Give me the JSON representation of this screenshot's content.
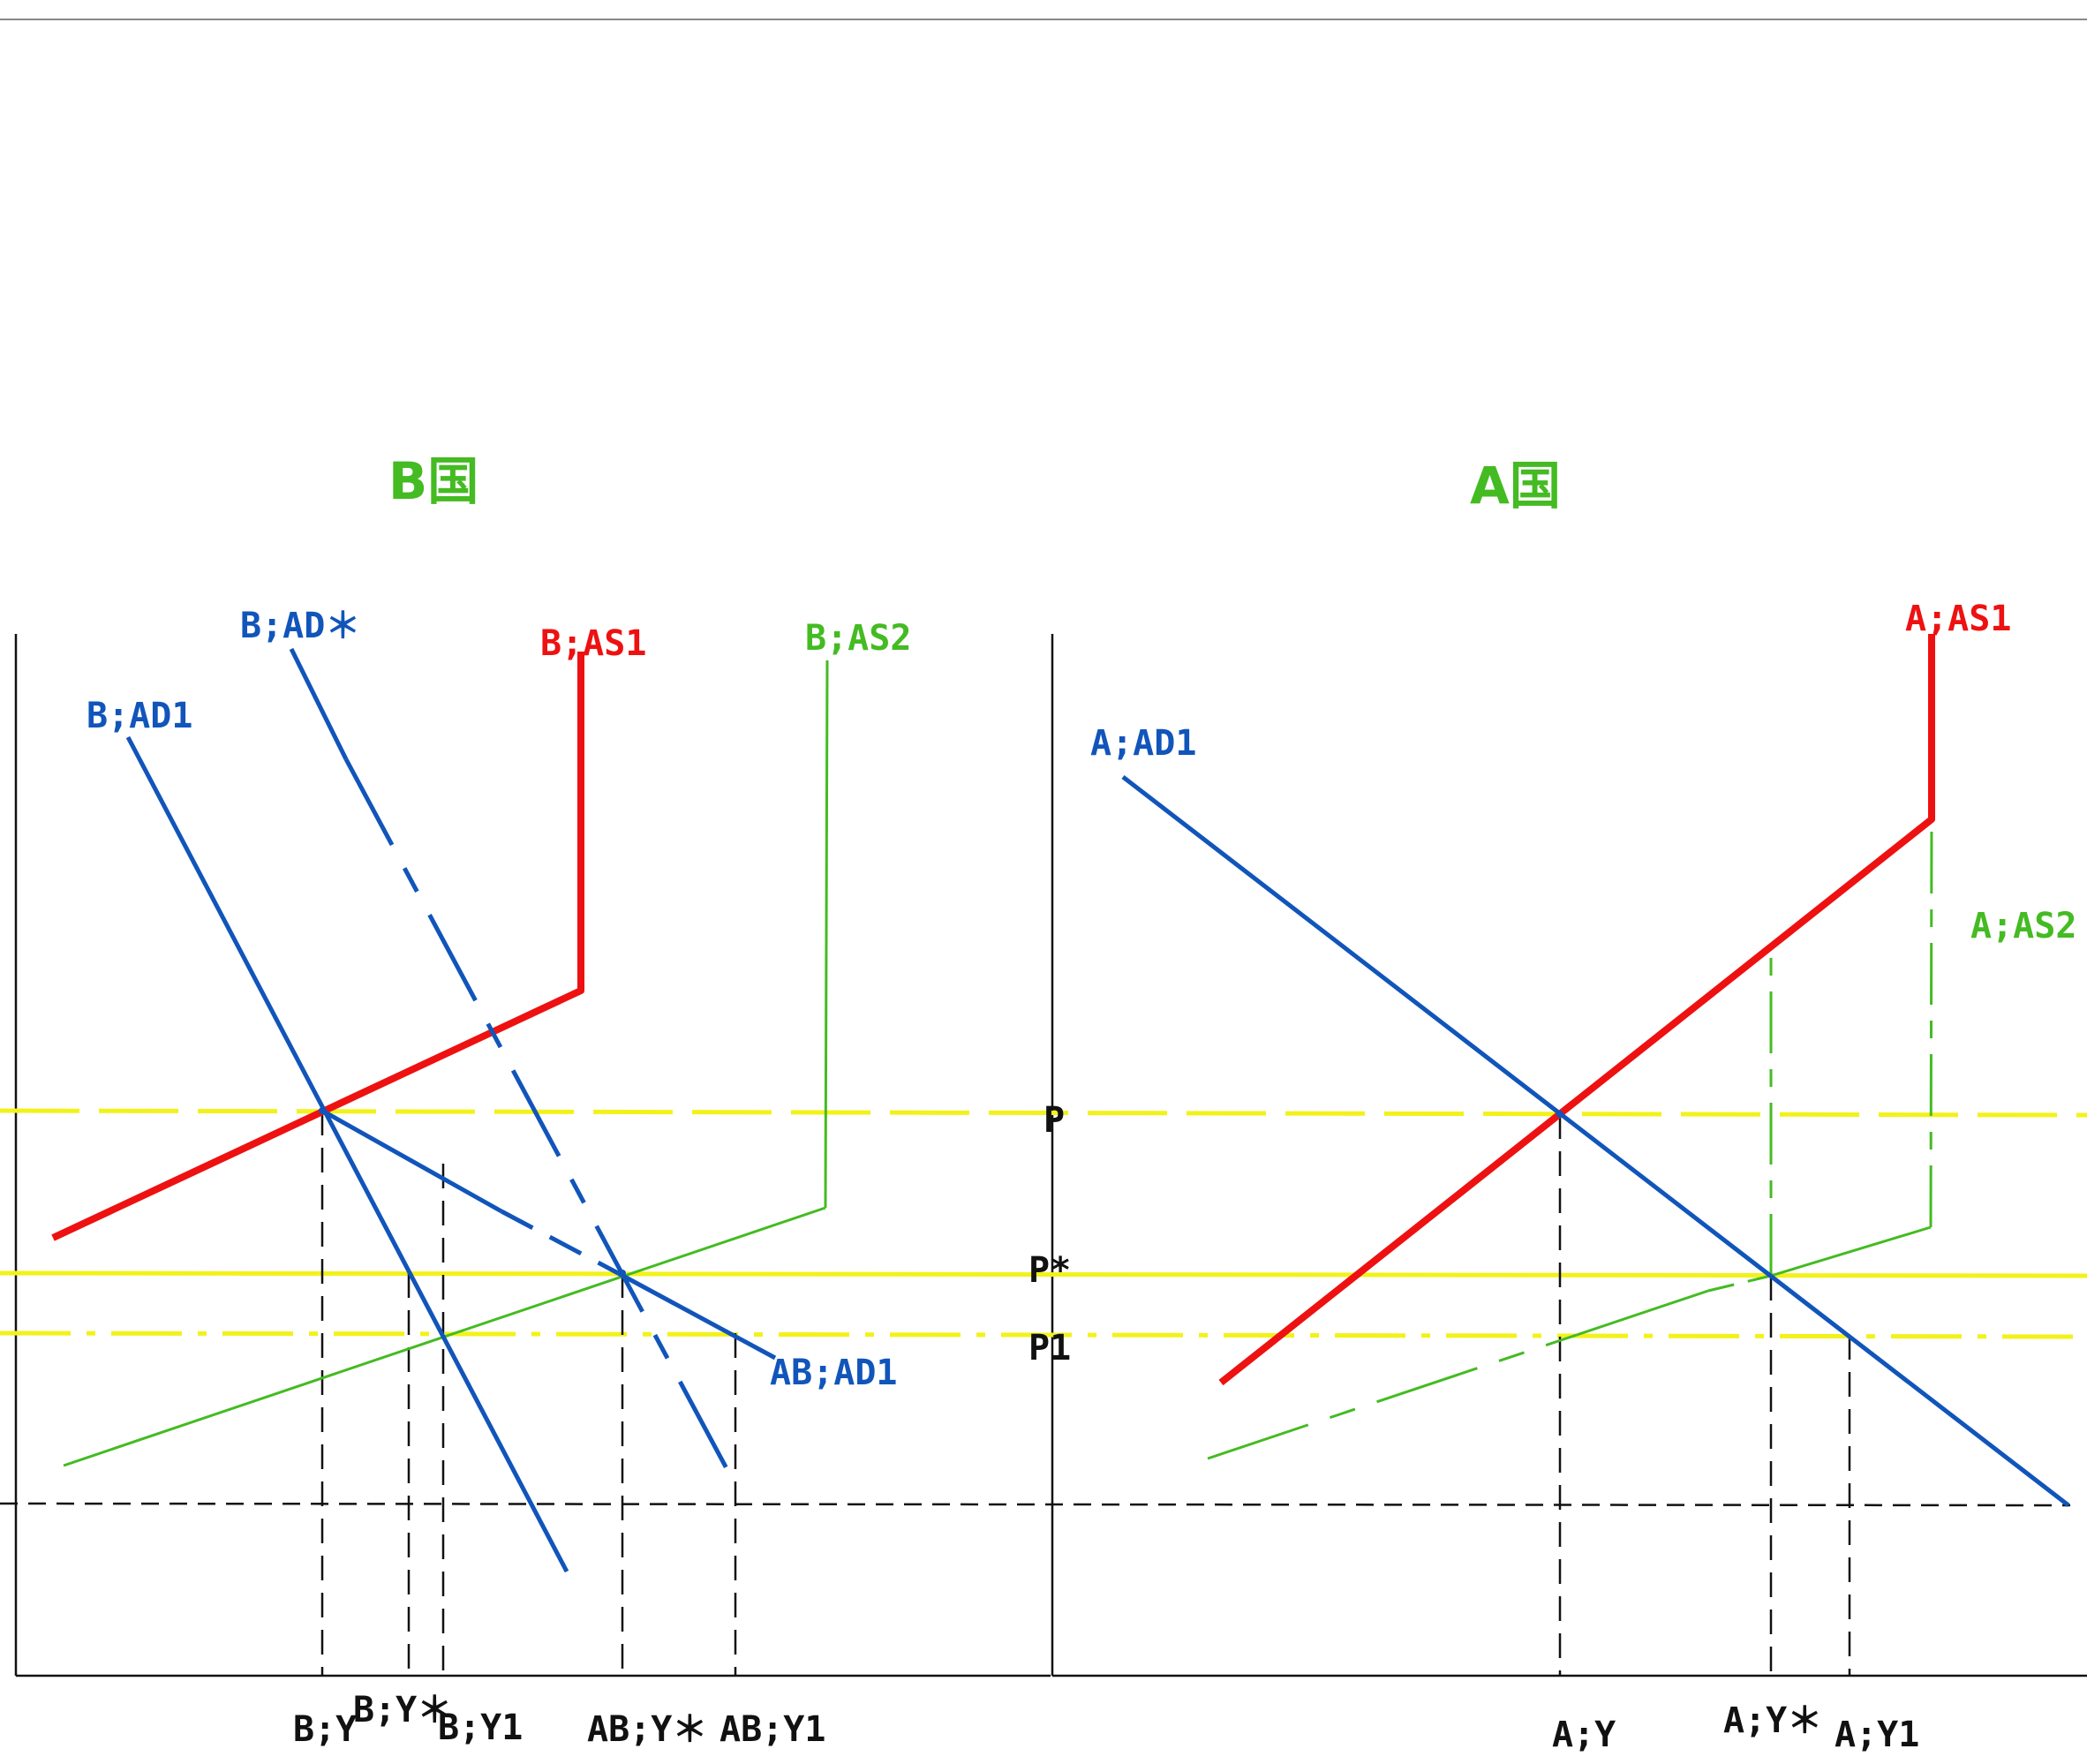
{
  "titles": {
    "left": "B国",
    "right": "A国"
  },
  "colors": {
    "red": "#ee1111",
    "blue": "#1155bb",
    "green": "#44bb22",
    "yellow": "#f2f21a",
    "black": "#111111",
    "title_green": "#44bb22"
  },
  "curve_labels": {
    "b_ad_star": "B;AD＊",
    "b_as1": "B;AS1",
    "b_as2": "B;AS2",
    "b_ad1": "B;AD1",
    "ab_ad1": "AB;AD1",
    "a_as1": "A;AS1",
    "a_ad1": "A;AD1",
    "a_as2": "A;AS2"
  },
  "price_labels": {
    "p": "P",
    "p_star": "P*",
    "p1": "P1"
  },
  "axis_labels": {
    "b_y": "B;Y",
    "b_y_star": "B;Y＊",
    "b_y1": "B;Y1",
    "ab_y_star": "AB;Y＊",
    "ab_y1": "AB;Y1",
    "a_y": "A;Y",
    "a_y_star": "A;Y＊",
    "a_y1": "A;Y1"
  }
}
